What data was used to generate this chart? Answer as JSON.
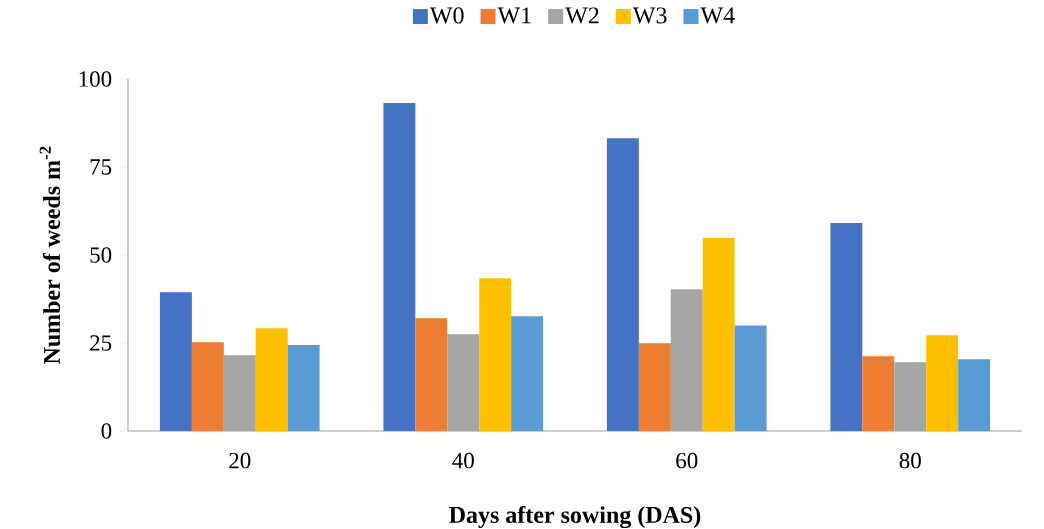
{
  "chart_data": {
    "type": "bar",
    "xlabel": "Days after sowing (DAS)",
    "ylabel": "Number of weeds m$^{-2}$",
    "categories": [
      "20",
      "40",
      "60",
      "80"
    ],
    "series": [
      {
        "name": "W0",
        "color": "#4472c4",
        "values": [
          39.4,
          93.2,
          83.2,
          59.1
        ]
      },
      {
        "name": "W1",
        "color": "#ed7d31",
        "values": [
          25.2,
          32.0,
          24.9,
          21.2
        ]
      },
      {
        "name": "W2",
        "color": "#a5a5a5",
        "values": [
          21.5,
          27.5,
          40.3,
          19.5
        ]
      },
      {
        "name": "W3",
        "color": "#ffc000",
        "values": [
          29.2,
          43.4,
          54.8,
          27.2
        ]
      },
      {
        "name": "W4",
        "color": "#5b9bd5",
        "values": [
          24.4,
          32.6,
          30.0,
          20.4
        ]
      }
    ],
    "ylim": [
      0,
      100
    ],
    "yticks": [
      0,
      25,
      50,
      75,
      100
    ],
    "grid": false,
    "legend": "top"
  }
}
